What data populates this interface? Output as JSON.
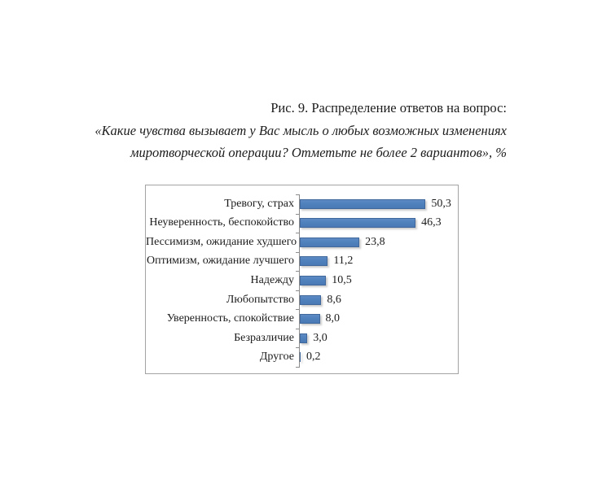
{
  "caption": {
    "line1": "Рис. 9. Распределение ответов на вопрос:",
    "line2": "«Какие чувства вызывает у Вас мысль о любых возможных изменениях",
    "line3": "миротворческой операции? Отметьте не более 2 вариантов», %"
  },
  "chart_data": {
    "type": "bar",
    "orientation": "horizontal",
    "title": "Рис. 9. Распределение ответов на вопрос: «Какие чувства вызывает у Вас мысль о любых возможных изменениях миротворческой операции? Отметьте не более 2 вариантов», %",
    "categories": [
      "Тревогу, страх",
      "Неуверенность, беспокойство",
      "Пессимизм, ожидание худшего",
      "Оптимизм, ожидание лучшего",
      "Надежду",
      "Любопытство",
      "Уверенность, спокойствие",
      "Безразличие",
      "Другое"
    ],
    "values": [
      50.3,
      46.3,
      23.8,
      11.2,
      10.5,
      8.6,
      8.0,
      3.0,
      0.2
    ],
    "value_labels": [
      "50,3",
      "46,3",
      "23,8",
      "11,2",
      "10,5",
      "8,6",
      "8,0",
      "3,0",
      "0,2"
    ],
    "xlim": [
      0,
      62
    ],
    "unit": "%",
    "grid": false,
    "legend": false,
    "bar_color": "#4f81bd",
    "bar_border_color": "#40689c",
    "axis_color": "#8c8c8c",
    "frame_color": "#a3a3a3",
    "text_color": "#1c1c1c"
  }
}
